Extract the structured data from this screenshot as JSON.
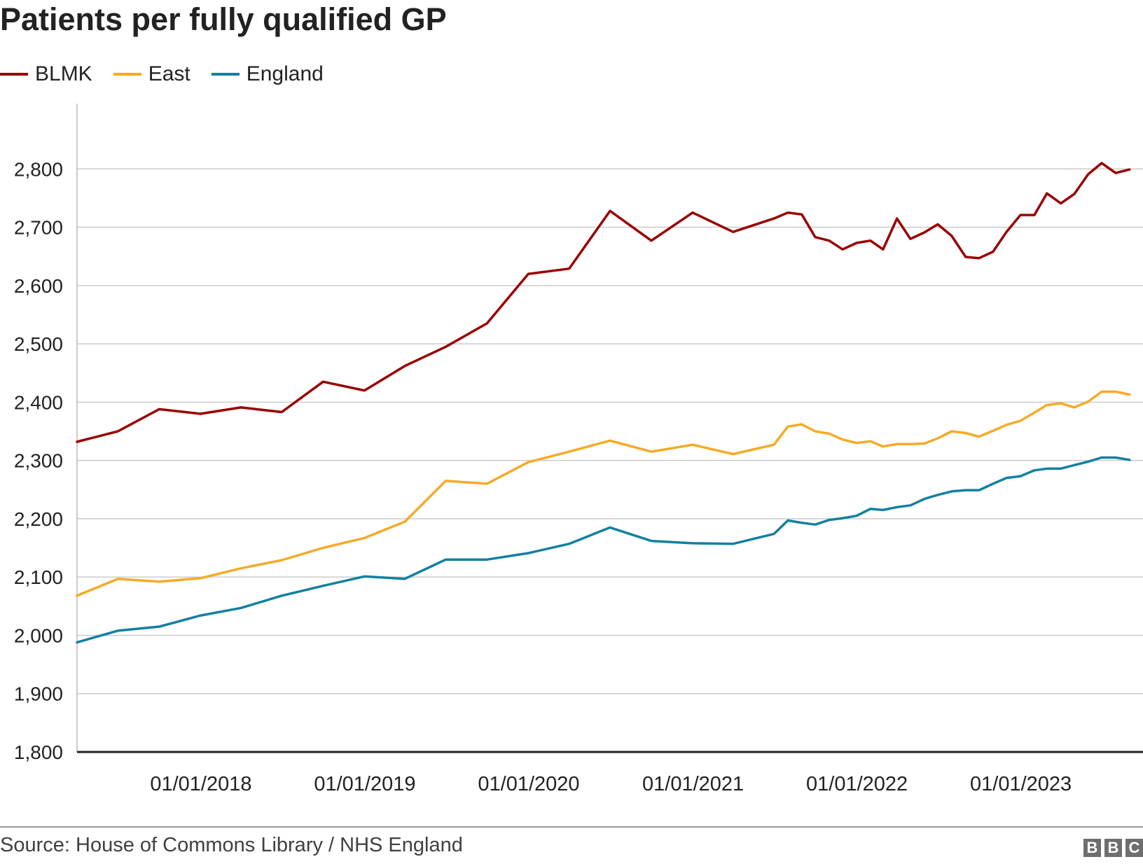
{
  "chart_data": {
    "type": "line",
    "title": "Patients per fully qualified GP",
    "xlabel": "",
    "ylabel": "",
    "ylim": [
      1800,
      2900
    ],
    "yticks": [
      1800,
      1900,
      2000,
      2100,
      2200,
      2300,
      2400,
      2500,
      2600,
      2700,
      2800
    ],
    "ytick_labels": [
      "1,800",
      "1,900",
      "2,000",
      "2,100",
      "2,200",
      "2,300",
      "2,400",
      "2,500",
      "2,600",
      "2,700",
      "2,800"
    ],
    "x_range": [
      "2017-03-31",
      "2023-09-30"
    ],
    "xticks": [
      "2018-01-01",
      "2019-01-01",
      "2020-01-01",
      "2021-01-01",
      "2022-01-01",
      "2023-01-01"
    ],
    "xtick_labels": [
      "01/01/2018",
      "01/01/2019",
      "01/01/2020",
      "01/01/2021",
      "01/01/2022",
      "01/01/2023"
    ],
    "grid": true,
    "legend_position": "top-left",
    "series": [
      {
        "name": "BLMK",
        "color": "#990000",
        "points": [
          [
            "2017-03-31",
            2332
          ],
          [
            "2017-06-30",
            2350
          ],
          [
            "2017-09-30",
            2388
          ],
          [
            "2017-12-31",
            2380
          ],
          [
            "2018-03-31",
            2391
          ],
          [
            "2018-06-30",
            2383
          ],
          [
            "2018-09-30",
            2435
          ],
          [
            "2018-12-31",
            2420
          ],
          [
            "2019-03-31",
            2462
          ],
          [
            "2019-06-30",
            2495
          ],
          [
            "2019-09-30",
            2535
          ],
          [
            "2019-12-31",
            2620
          ],
          [
            "2020-03-31",
            2629
          ],
          [
            "2020-06-30",
            2728
          ],
          [
            "2020-09-30",
            2677
          ],
          [
            "2020-12-31",
            2725
          ],
          [
            "2021-03-31",
            2692
          ],
          [
            "2021-06-30",
            2715
          ],
          [
            "2021-07-31",
            2725
          ],
          [
            "2021-08-31",
            2722
          ],
          [
            "2021-09-30",
            2683
          ],
          [
            "2021-10-31",
            2677
          ],
          [
            "2021-11-30",
            2662
          ],
          [
            "2021-12-31",
            2673
          ],
          [
            "2022-01-31",
            2677
          ],
          [
            "2022-02-28",
            2662
          ],
          [
            "2022-03-31",
            2715
          ],
          [
            "2022-04-30",
            2680
          ],
          [
            "2022-05-31",
            2691
          ],
          [
            "2022-06-30",
            2705
          ],
          [
            "2022-07-31",
            2685
          ],
          [
            "2022-08-31",
            2649
          ],
          [
            "2022-09-30",
            2647
          ],
          [
            "2022-10-31",
            2658
          ],
          [
            "2022-11-30",
            2692
          ],
          [
            "2022-12-31",
            2721
          ],
          [
            "2023-01-31",
            2721
          ],
          [
            "2023-02-28",
            2758
          ],
          [
            "2023-03-31",
            2741
          ],
          [
            "2023-04-30",
            2757
          ],
          [
            "2023-05-31",
            2791
          ],
          [
            "2023-06-30",
            2810
          ],
          [
            "2023-07-31",
            2793
          ],
          [
            "2023-08-31",
            2799
          ]
        ]
      },
      {
        "name": "East",
        "color": "#f6aa27",
        "points": [
          [
            "2017-03-31",
            2068
          ],
          [
            "2017-06-30",
            2097
          ],
          [
            "2017-09-30",
            2092
          ],
          [
            "2017-12-31",
            2098
          ],
          [
            "2018-03-31",
            2115
          ],
          [
            "2018-06-30",
            2129
          ],
          [
            "2018-09-30",
            2150
          ],
          [
            "2018-12-31",
            2167
          ],
          [
            "2019-03-31",
            2195
          ],
          [
            "2019-06-30",
            2265
          ],
          [
            "2019-09-30",
            2260
          ],
          [
            "2019-12-31",
            2297
          ],
          [
            "2020-03-31",
            2315
          ],
          [
            "2020-06-30",
            2334
          ],
          [
            "2020-09-30",
            2315
          ],
          [
            "2020-12-31",
            2327
          ],
          [
            "2021-03-31",
            2311
          ],
          [
            "2021-06-30",
            2327
          ],
          [
            "2021-07-31",
            2358
          ],
          [
            "2021-08-31",
            2362
          ],
          [
            "2021-09-30",
            2350
          ],
          [
            "2021-10-31",
            2346
          ],
          [
            "2021-11-30",
            2336
          ],
          [
            "2021-12-31",
            2330
          ],
          [
            "2022-01-31",
            2333
          ],
          [
            "2022-02-28",
            2324
          ],
          [
            "2022-03-31",
            2328
          ],
          [
            "2022-04-30",
            2328
          ],
          [
            "2022-05-31",
            2329
          ],
          [
            "2022-06-30",
            2338
          ],
          [
            "2022-07-31",
            2350
          ],
          [
            "2022-08-31",
            2347
          ],
          [
            "2022-09-30",
            2341
          ],
          [
            "2022-10-31",
            2351
          ],
          [
            "2022-11-30",
            2361
          ],
          [
            "2022-12-31",
            2368
          ],
          [
            "2023-01-31",
            2382
          ],
          [
            "2023-02-28",
            2395
          ],
          [
            "2023-03-31",
            2398
          ],
          [
            "2023-04-30",
            2391
          ],
          [
            "2023-05-31",
            2401
          ],
          [
            "2023-06-30",
            2418
          ],
          [
            "2023-07-31",
            2418
          ],
          [
            "2023-08-31",
            2413
          ]
        ]
      },
      {
        "name": "England",
        "color": "#1380a1",
        "points": [
          [
            "2017-03-31",
            1988
          ],
          [
            "2017-06-30",
            2008
          ],
          [
            "2017-09-30",
            2015
          ],
          [
            "2017-12-31",
            2034
          ],
          [
            "2018-03-31",
            2047
          ],
          [
            "2018-06-30",
            2068
          ],
          [
            "2018-09-30",
            2085
          ],
          [
            "2018-12-31",
            2101
          ],
          [
            "2019-03-31",
            2097
          ],
          [
            "2019-06-30",
            2130
          ],
          [
            "2019-09-30",
            2130
          ],
          [
            "2019-12-31",
            2141
          ],
          [
            "2020-03-31",
            2157
          ],
          [
            "2020-06-30",
            2185
          ],
          [
            "2020-09-30",
            2162
          ],
          [
            "2020-12-31",
            2158
          ],
          [
            "2021-03-31",
            2157
          ],
          [
            "2021-06-30",
            2174
          ],
          [
            "2021-07-31",
            2197
          ],
          [
            "2021-08-31",
            2193
          ],
          [
            "2021-09-30",
            2190
          ],
          [
            "2021-10-31",
            2198
          ],
          [
            "2021-11-30",
            2201
          ],
          [
            "2021-12-31",
            2205
          ],
          [
            "2022-01-31",
            2217
          ],
          [
            "2022-02-28",
            2215
          ],
          [
            "2022-03-31",
            2220
          ],
          [
            "2022-04-30",
            2223
          ],
          [
            "2022-05-31",
            2234
          ],
          [
            "2022-06-30",
            2241
          ],
          [
            "2022-07-31",
            2247
          ],
          [
            "2022-08-31",
            2249
          ],
          [
            "2022-09-30",
            2249
          ],
          [
            "2022-10-31",
            2260
          ],
          [
            "2022-11-30",
            2270
          ],
          [
            "2022-12-31",
            2273
          ],
          [
            "2023-01-31",
            2283
          ],
          [
            "2023-02-28",
            2286
          ],
          [
            "2023-03-31",
            2286
          ],
          [
            "2023-04-30",
            2292
          ],
          [
            "2023-05-31",
            2298
          ],
          [
            "2023-06-30",
            2305
          ],
          [
            "2023-07-31",
            2305
          ],
          [
            "2023-08-31",
            2301
          ]
        ]
      }
    ]
  },
  "footer": {
    "source": "Source: House of Commons Library / NHS England",
    "logo_letters": [
      "B",
      "B",
      "C"
    ]
  }
}
